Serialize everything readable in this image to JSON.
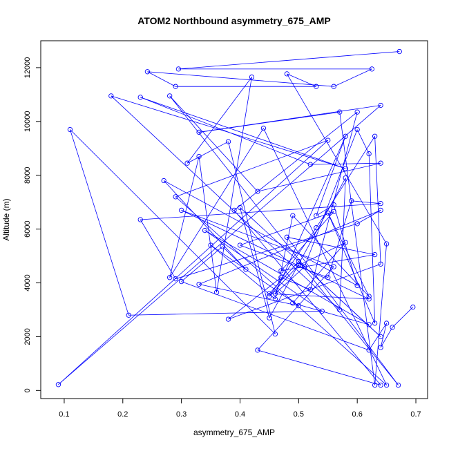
{
  "chart_data": {
    "type": "scatter",
    "title": "ATOM2 Northbound asymmetry_675_AMP",
    "xlabel": "asymmetry_675_AMP",
    "ylabel": "Altitude (m)",
    "xlim": [
      0.06,
      0.72
    ],
    "ylim": [
      -300,
      13000
    ],
    "xticks": [
      "0.1",
      "0.2",
      "0.3",
      "0.4",
      "0.5",
      "0.6",
      "0.7"
    ],
    "yticks": [
      "0",
      "2000",
      "4000",
      "6000",
      "8000",
      "10000",
      "12000"
    ],
    "x_tick_values": [
      0.1,
      0.2,
      0.3,
      0.4,
      0.5,
      0.6,
      0.7
    ],
    "y_tick_values": [
      0,
      2000,
      4000,
      6000,
      8000,
      10000,
      12000
    ],
    "line_color": "#0000ff",
    "marker_color": "#0000ff",
    "series": [
      {
        "x": [
          0.672,
          0.295,
          0.625,
          0.56,
          0.242,
          0.29,
          0.53,
          0.48,
          0.65,
          0.63,
          0.57,
          0.33,
          0.64,
          0.09,
          0.55,
          0.29,
          0.65,
          0.44,
          0.28,
          0.33,
          0.36,
          0.42,
          0.31,
          0.38,
          0.46,
          0.11,
          0.21,
          0.54,
          0.34,
          0.62,
          0.49,
          0.58,
          0.5,
          0.45,
          0.53,
          0.63,
          0.64,
          0.38,
          0.47,
          0.52,
          0.6,
          0.39,
          0.64,
          0.43,
          0.56,
          0.3,
          0.62,
          0.45,
          0.5,
          0.67,
          0.48,
          0.63,
          0.47,
          0.56,
          0.4,
          0.55,
          0.59,
          0.64,
          0.23,
          0.29,
          0.6,
          0.64,
          0.33,
          0.5,
          0.35,
          0.46,
          0.49,
          0.62,
          0.55,
          0.63,
          0.62,
          0.6,
          0.51,
          0.64,
          0.4,
          0.45,
          0.58,
          0.57,
          0.18,
          0.58,
          0.23,
          0.52,
          0.64,
          0.43,
          0.28,
          0.51,
          0.46,
          0.58,
          0.53,
          0.56,
          0.6,
          0.27,
          0.41,
          0.37,
          0.3,
          0.62,
          0.65,
          0.64,
          0.66,
          0.695
        ],
        "y": [
          12600,
          11950,
          11950,
          11300,
          11850,
          11300,
          11300,
          11770,
          5450,
          200,
          10350,
          9600,
          10600,
          220,
          9300,
          7200,
          200,
          9750,
          4200,
          8700,
          3650,
          11650,
          8450,
          9250,
          2100,
          9700,
          2800,
          2950,
          5950,
          2450,
          3250,
          5500,
          4650,
          3500,
          6050,
          9450,
          4700,
          2650,
          4200,
          3750,
          10350,
          6700,
          200,
          1500,
          4600,
          6700,
          3400,
          3600,
          4800,
          200,
          5700,
          5050,
          4450,
          6650,
          5400,
          4200,
          7050,
          6950,
          6350,
          4150,
          6200,
          6700,
          3950,
          3150,
          5400,
          3400,
          6500,
          3500,
          6600,
          2500,
          8800,
          9700,
          4600,
          2000,
          6800,
          2700,
          7900,
          3000,
          10950,
          8250,
          10900,
          8400,
          8450,
          7400,
          10950,
          4600,
          3600,
          9450,
          6500,
          6900,
          3900,
          7800,
          4500,
          5350,
          4050,
          1500,
          2500,
          1600,
          2350,
          3100
        ],
        "marker": "circle-open"
      }
    ]
  }
}
